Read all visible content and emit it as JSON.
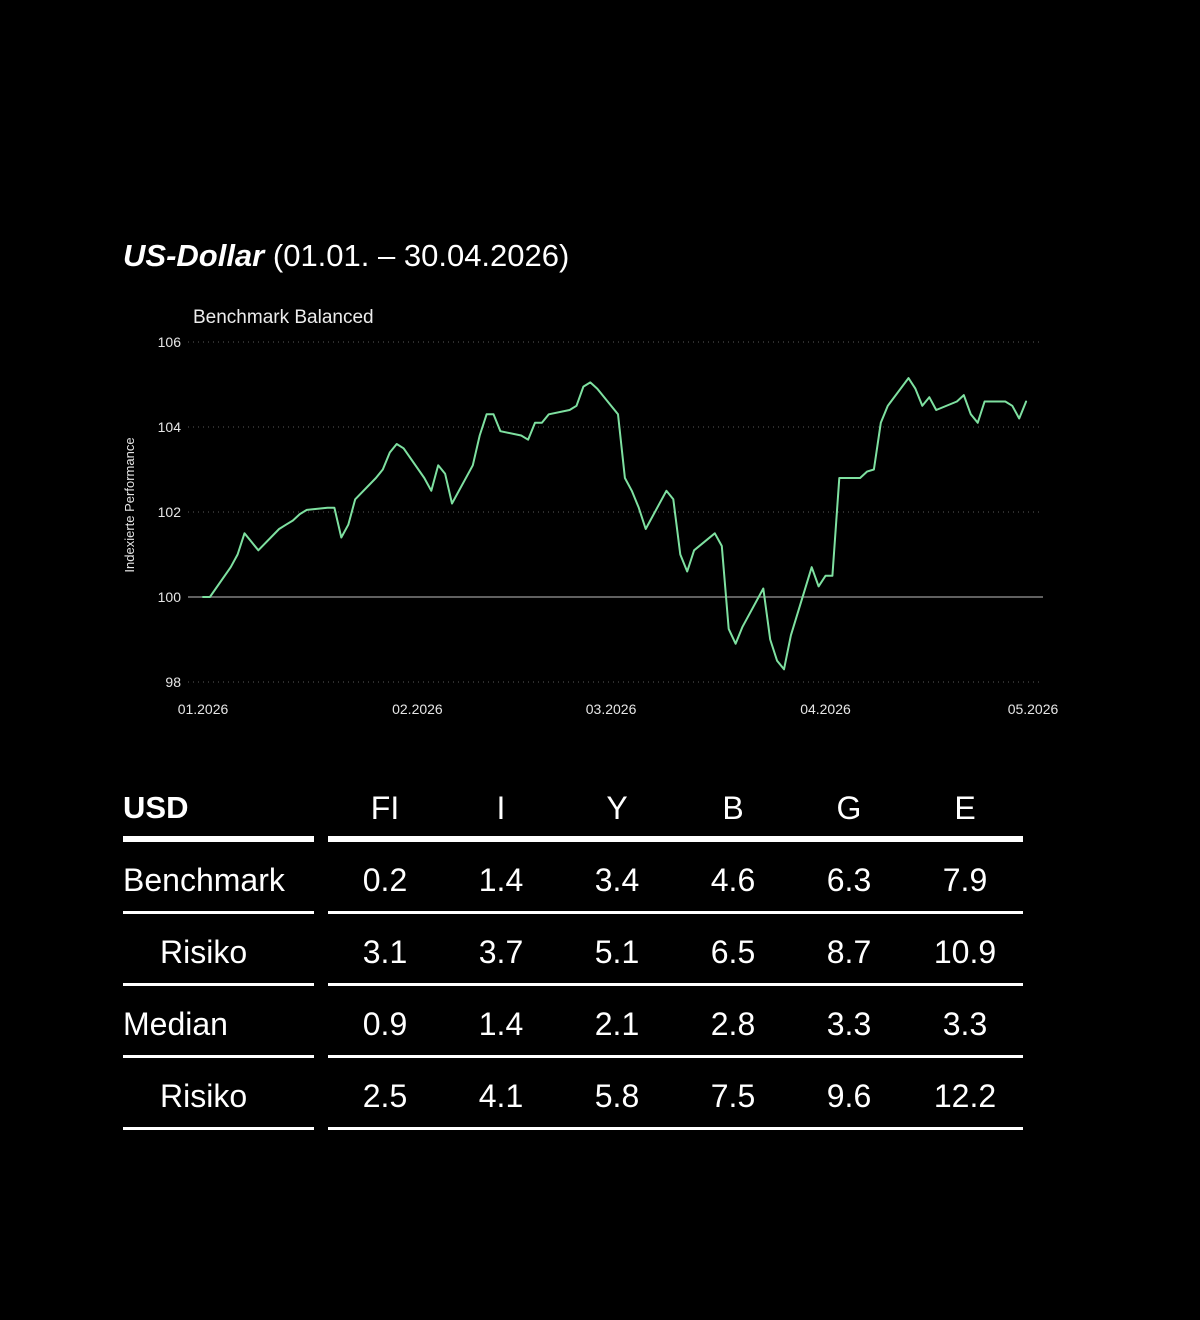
{
  "title": {
    "main": "US-Dollar",
    "range": "(01.01. – 30.04.2026)"
  },
  "chart_data": {
    "type": "line",
    "series": [
      {
        "name": "Benchmark Balanced",
        "color": "#7ee0a0",
        "x": [
          "2026-01-01",
          "2026-01-02",
          "2026-01-05",
          "2026-01-06",
          "2026-01-07",
          "2026-01-08",
          "2026-01-09",
          "2026-01-12",
          "2026-01-13",
          "2026-01-14",
          "2026-01-15",
          "2026-01-16",
          "2026-01-19",
          "2026-01-20",
          "2026-01-21",
          "2026-01-22",
          "2026-01-23",
          "2026-01-26",
          "2026-01-27",
          "2026-01-28",
          "2026-01-29",
          "2026-01-30",
          "2026-02-02",
          "2026-02-03",
          "2026-02-04",
          "2026-02-05",
          "2026-02-06",
          "2026-02-09",
          "2026-02-10",
          "2026-02-11",
          "2026-02-12",
          "2026-02-13",
          "2026-02-16",
          "2026-02-17",
          "2026-02-18",
          "2026-02-19",
          "2026-02-20",
          "2026-02-23",
          "2026-02-24",
          "2026-02-25",
          "2026-02-26",
          "2026-02-27",
          "2026-03-02",
          "2026-03-03",
          "2026-03-04",
          "2026-03-05",
          "2026-03-06",
          "2026-03-09",
          "2026-03-10",
          "2026-03-11",
          "2026-03-12",
          "2026-03-13",
          "2026-03-16",
          "2026-03-17",
          "2026-03-18",
          "2026-03-19",
          "2026-03-20",
          "2026-03-23",
          "2026-03-24",
          "2026-03-25",
          "2026-03-26",
          "2026-03-27",
          "2026-03-30",
          "2026-03-31",
          "2026-04-01",
          "2026-04-02",
          "2026-04-03",
          "2026-04-06",
          "2026-04-07",
          "2026-04-08",
          "2026-04-09",
          "2026-04-10",
          "2026-04-13",
          "2026-04-14",
          "2026-04-15",
          "2026-04-16",
          "2026-04-17",
          "2026-04-20",
          "2026-04-21",
          "2026-04-22",
          "2026-04-23",
          "2026-04-24",
          "2026-04-27",
          "2026-04-28",
          "2026-04-29",
          "2026-04-30"
        ],
        "values": [
          100.0,
          100.0,
          100.7,
          101.0,
          101.5,
          101.3,
          101.1,
          101.6,
          101.7,
          101.8,
          101.95,
          102.05,
          102.1,
          102.1,
          101.4,
          101.7,
          102.3,
          102.8,
          103.0,
          103.4,
          103.6,
          103.5,
          102.8,
          102.5,
          103.1,
          102.9,
          102.2,
          103.1,
          103.8,
          104.3,
          104.3,
          103.9,
          103.8,
          103.7,
          104.1,
          104.1,
          104.3,
          104.4,
          104.5,
          104.95,
          105.05,
          104.9,
          104.3,
          102.8,
          102.5,
          102.1,
          101.6,
          102.5,
          102.3,
          101.0,
          100.6,
          101.1,
          101.5,
          101.2,
          99.25,
          98.9,
          99.3,
          100.2,
          99.0,
          98.5,
          98.3,
          99.1,
          100.7,
          100.25,
          100.5,
          100.5,
          102.8,
          102.8,
          102.95,
          103.0,
          104.1,
          104.5,
          105.15,
          104.9,
          104.5,
          104.7,
          104.4,
          104.6,
          104.75,
          104.3,
          104.1,
          104.6,
          104.6,
          104.5,
          104.2,
          104.6
        ],
        "label": "Benchmark Balanced"
      }
    ],
    "ylabel": "Indexierte Performance",
    "ylim": [
      98,
      106
    ],
    "yticks": [
      98,
      100,
      102,
      104,
      106
    ],
    "xlim": [
      "2026-01-01",
      "2026-05-01"
    ],
    "xticks": [
      {
        "date": "2026-01-01",
        "label": "01.2026"
      },
      {
        "date": "2026-02-01",
        "label": "02.2026"
      },
      {
        "date": "2026-03-01",
        "label": "03.2026"
      },
      {
        "date": "2026-04-01",
        "label": "04.2026"
      },
      {
        "date": "2026-05-01",
        "label": "05.2026"
      }
    ],
    "baseline": 100,
    "grid": true
  },
  "table": {
    "corner": "USD",
    "columns": [
      "FI",
      "I",
      "Y",
      "B",
      "G",
      "E"
    ],
    "rows": [
      {
        "label": "Benchmark",
        "indent": false,
        "values": [
          "0.2",
          "1.4",
          "3.4",
          "4.6",
          "6.3",
          "7.9"
        ]
      },
      {
        "label": "Risiko",
        "indent": true,
        "values": [
          "3.1",
          "3.7",
          "5.1",
          "6.5",
          "8.7",
          "10.9"
        ]
      },
      {
        "label": "Median",
        "indent": false,
        "values": [
          "0.9",
          "1.4",
          "2.1",
          "2.8",
          "3.3",
          "3.3"
        ]
      },
      {
        "label": "Risiko",
        "indent": true,
        "values": [
          "2.5",
          "4.1",
          "5.8",
          "7.5",
          "9.6",
          "12.2"
        ]
      }
    ]
  }
}
